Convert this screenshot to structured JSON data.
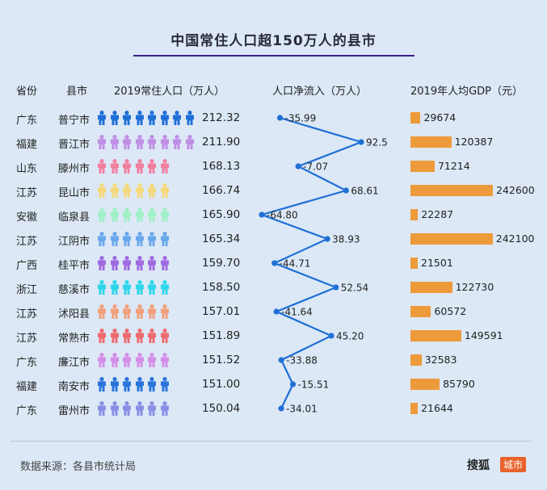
{
  "title": "中国常住人口超150万人的县市",
  "headers": {
    "province": "省份",
    "county": "县市",
    "population": "2019常住人口（万人）",
    "net_inflow": "人口净流入（万人）",
    "gdp": "2019年人均GDP（元）"
  },
  "rows": [
    {
      "province": "广东",
      "county": "普宁市",
      "population": "212.32",
      "inflow": "-35.99",
      "gdp": "29674",
      "icons": 8,
      "color": "#1f6fd6"
    },
    {
      "province": "福建",
      "county": "晋江市",
      "population": "211.90",
      "inflow": "92.5",
      "gdp": "120387",
      "icons": 8,
      "color": "#c08ee6"
    },
    {
      "province": "山东",
      "county": "滕州市",
      "population": "168.13",
      "inflow": "-7.07",
      "gdp": "71214",
      "icons": 6,
      "color": "#f27f9f"
    },
    {
      "province": "江苏",
      "county": "昆山市",
      "population": "166.74",
      "inflow": "68.61",
      "gdp": "242600",
      "icons": 6,
      "color": "#f5d87a"
    },
    {
      "province": "安徽",
      "county": "临泉县",
      "population": "165.90",
      "inflow": "-64.80",
      "gdp": "22287",
      "icons": 6,
      "color": "#9ff0c6"
    },
    {
      "province": "江苏",
      "county": "江阴市",
      "population": "165.34",
      "inflow": "38.93",
      "gdp": "242100",
      "icons": 6,
      "color": "#6aa8ec"
    },
    {
      "province": "广西",
      "county": "桂平市",
      "population": "159.70",
      "inflow": "-44.71",
      "gdp": "21501",
      "icons": 6,
      "color": "#a06ae0"
    },
    {
      "province": "浙江",
      "county": "慈溪市",
      "population": "158.50",
      "inflow": "52.54",
      "gdp": "122730",
      "icons": 6,
      "color": "#2fd6ea"
    },
    {
      "province": "江苏",
      "county": "沭阳县",
      "population": "157.01",
      "inflow": "-41.64",
      "gdp": "60572",
      "icons": 6,
      "color": "#f2a07c"
    },
    {
      "province": "江苏",
      "county": "常熟市",
      "population": "151.89",
      "inflow": "45.20",
      "gdp": "149591",
      "icons": 6,
      "color": "#ee6a6e"
    },
    {
      "province": "广东",
      "county": "廉江市",
      "population": "151.52",
      "inflow": "-33.88",
      "gdp": "32583",
      "icons": 6,
      "color": "#d48ee8"
    },
    {
      "province": "福建",
      "county": "南安市",
      "population": "151.00",
      "inflow": "-15.51",
      "gdp": "85790",
      "icons": 6,
      "color": "#2a74db"
    },
    {
      "province": "广东",
      "county": "雷州市",
      "population": "150.04",
      "inflow": "-34.01",
      "gdp": "21644",
      "icons": 6,
      "color": "#8a8fe6"
    }
  ],
  "chart_data": {
    "type": "table",
    "title": "中国常住人口超150万人的县市",
    "columns": [
      "省份",
      "县市",
      "2019常住人口（万人）",
      "人口净流入（万人）",
      "2019年人均GDP（元）"
    ],
    "categories": [
      "普宁市",
      "晋江市",
      "滕州市",
      "昆山市",
      "临泉县",
      "江阴市",
      "桂平市",
      "慈溪市",
      "沭阳县",
      "常熟市",
      "廉江市",
      "南安市",
      "雷州市"
    ],
    "series": [
      {
        "name": "2019常住人口（万人）",
        "values": [
          212.32,
          211.9,
          168.13,
          166.74,
          165.9,
          165.34,
          159.7,
          158.5,
          157.01,
          151.89,
          151.52,
          151.0,
          150.04
        ]
      },
      {
        "name": "人口净流入（万人）",
        "values": [
          -35.99,
          92.5,
          -7.07,
          68.61,
          -64.8,
          38.93,
          -44.71,
          52.54,
          -41.64,
          45.2,
          -33.88,
          -15.51,
          -34.01
        ]
      },
      {
        "name": "2019年人均GDP（元）",
        "values": [
          29674,
          120387,
          71214,
          242600,
          22287,
          242100,
          21501,
          122730,
          60572,
          149591,
          32583,
          85790,
          21644
        ]
      }
    ]
  },
  "footer": {
    "source": "数据来源：各县市统计局",
    "brand": "搜狐",
    "badge": "城市"
  },
  "colors": {
    "background": "#dce8f6",
    "line": "#1f6fd6",
    "bar": "#ed9a3a",
    "title_underline": "#3b1f8c"
  }
}
